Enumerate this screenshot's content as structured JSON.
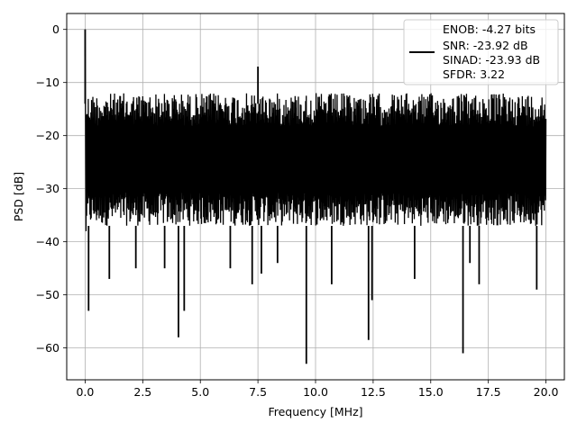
{
  "chart_data": {
    "type": "line",
    "title": "",
    "xlabel": "Frequency [MHz]",
    "ylabel": "PSD [dB]",
    "xlim": [
      -0.8,
      20.8
    ],
    "ylim": [
      -66,
      3
    ],
    "x_ticks": [
      0.0,
      2.5,
      5.0,
      7.5,
      10.0,
      12.5,
      15.0,
      17.5,
      20.0
    ],
    "x_tick_labels": [
      "0.0",
      "2.5",
      "5.0",
      "7.5",
      "10.0",
      "12.5",
      "15.0",
      "17.5",
      "20.0"
    ],
    "y_ticks": [
      0,
      -10,
      -20,
      -30,
      -40,
      -50,
      -60
    ],
    "y_tick_labels": [
      "0",
      "−10",
      "−20",
      "−30",
      "−40",
      "−50",
      "−60"
    ],
    "grid": true,
    "legend_position": "top-right",
    "series": [
      {
        "color": "#000000",
        "legend_lines": [
          "ENOB: -4.27 bits",
          "SNR: -23.92 dB",
          "SINAD: -23.93 dB",
          "SFDR: 3.22"
        ],
        "noise_floor": {
          "x_start": 0.05,
          "x_end": 20.0,
          "upper_envelope_db": -12,
          "lower_envelope_db": -37
        },
        "peaks": [
          {
            "x": 0.0,
            "y": 0.0
          },
          {
            "x": 7.5,
            "y": -7
          }
        ],
        "dips": [
          {
            "x": 0.15,
            "y": -53
          },
          {
            "x": 1.05,
            "y": -47
          },
          {
            "x": 2.2,
            "y": -45
          },
          {
            "x": 3.45,
            "y": -45
          },
          {
            "x": 4.05,
            "y": -58
          },
          {
            "x": 4.3,
            "y": -53
          },
          {
            "x": 6.3,
            "y": -45
          },
          {
            "x": 7.25,
            "y": -48
          },
          {
            "x": 7.65,
            "y": -46
          },
          {
            "x": 8.35,
            "y": -44
          },
          {
            "x": 9.6,
            "y": -63
          },
          {
            "x": 10.7,
            "y": -48
          },
          {
            "x": 12.3,
            "y": -58.5
          },
          {
            "x": 12.45,
            "y": -51
          },
          {
            "x": 14.3,
            "y": -47
          },
          {
            "x": 16.4,
            "y": -61
          },
          {
            "x": 16.7,
            "y": -44
          },
          {
            "x": 17.1,
            "y": -48
          },
          {
            "x": 19.6,
            "y": -49
          }
        ]
      }
    ]
  }
}
